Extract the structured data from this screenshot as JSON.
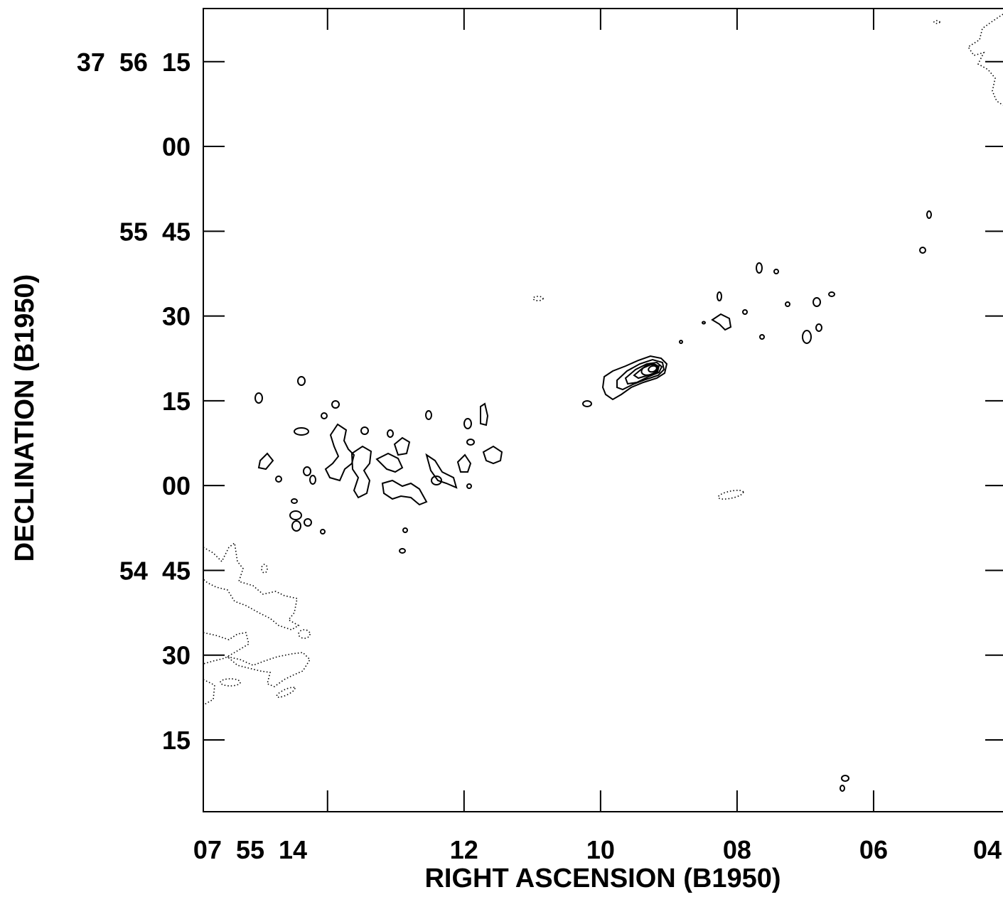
{
  "chart_data": {
    "type": "contour",
    "xlabel": "RIGHT  ASCENSION  (B1950)",
    "ylabel": "DECLINATION  (B1950)",
    "x_tick_labels": [
      "07  55  14",
      "12",
      "10",
      "08",
      "06",
      "04"
    ],
    "y_tick_labels": [
      "37  56  15",
      "00",
      "55  45",
      "30",
      "15",
      "00",
      "54  45",
      "30",
      "15"
    ],
    "x_ticks_sec": [
      14,
      12,
      10,
      8,
      6,
      4
    ],
    "y_ticks_arcsec": [
      75,
      60,
      45,
      30,
      15,
      0,
      -15,
      -30,
      -45
    ],
    "xlim_sec": [
      15.82,
      4.0
    ],
    "ylim_arcsec": [
      -57.7,
      84.4
    ],
    "contour_levels_shown": "solid = positive, dotted = negative",
    "core": {
      "ra_sec": 9.05,
      "dec_arcsec": 20.7
    },
    "colors": {
      "ink": "#000000",
      "background": "#ffffff"
    }
  }
}
